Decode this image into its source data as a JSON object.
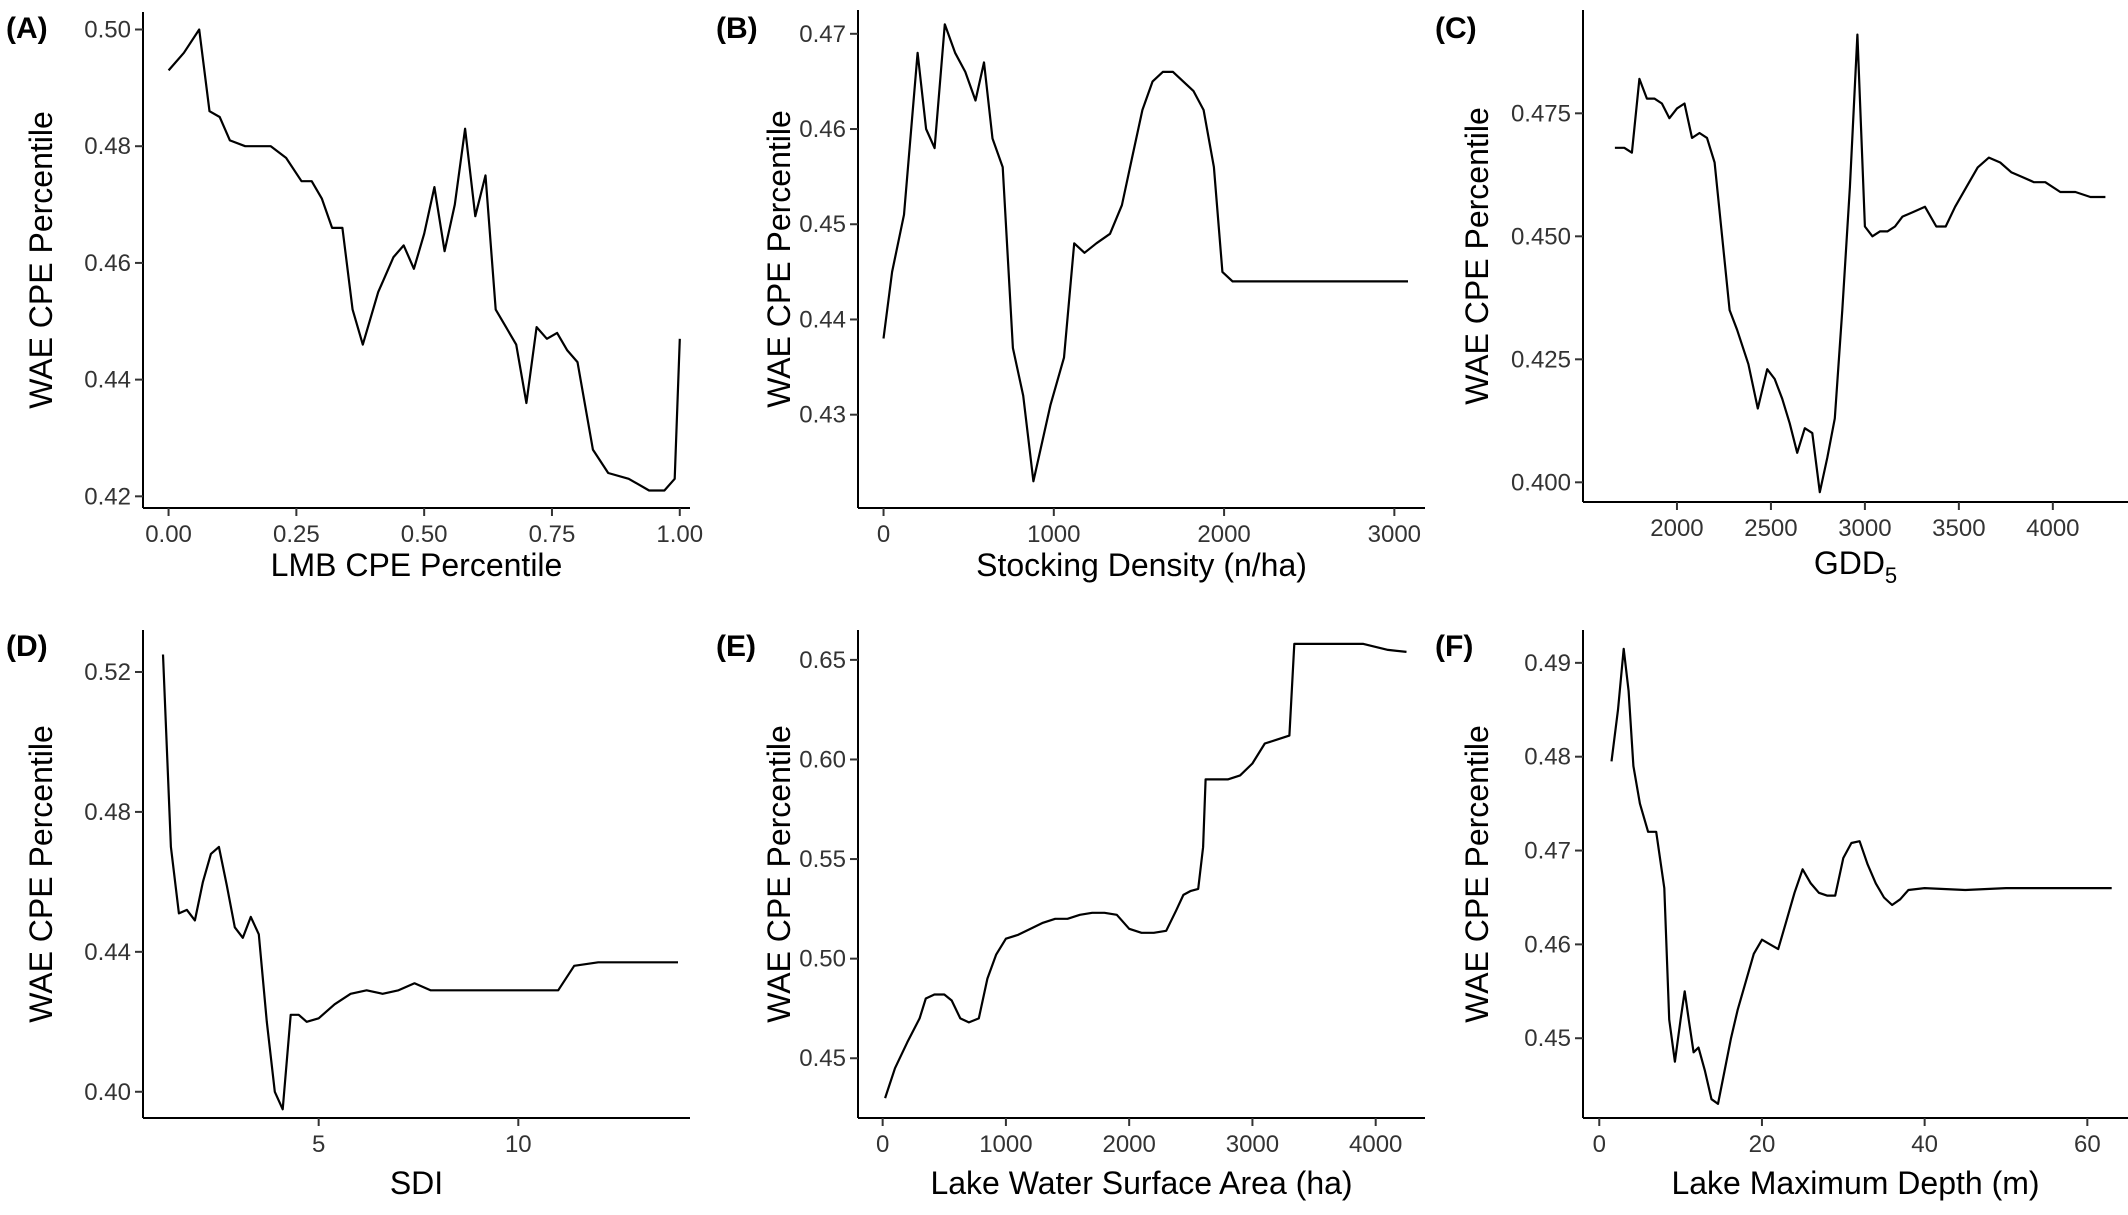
{
  "chart_data": [
    {
      "type": "line",
      "panel_label": "(A)",
      "xlabel": "LMB CPE Percentile",
      "ylabel": "WAE CPE Percentile",
      "xlim": [
        -0.05,
        1.02
      ],
      "ylim": [
        0.418,
        0.503
      ],
      "xticks": [
        0.0,
        0.25,
        0.5,
        0.75,
        1.0
      ],
      "xtick_labels": [
        "0.00",
        "0.25",
        "0.50",
        "0.75",
        "1.00"
      ],
      "yticks": [
        0.42,
        0.44,
        0.46,
        0.48,
        0.5
      ],
      "ytick_labels": [
        "0.42",
        "0.44",
        "0.46",
        "0.48",
        "0.50"
      ],
      "grid": false,
      "x": [
        0.0,
        0.03,
        0.06,
        0.08,
        0.1,
        0.12,
        0.15,
        0.2,
        0.23,
        0.26,
        0.28,
        0.3,
        0.32,
        0.34,
        0.36,
        0.38,
        0.41,
        0.44,
        0.46,
        0.48,
        0.5,
        0.52,
        0.54,
        0.56,
        0.58,
        0.6,
        0.62,
        0.64,
        0.66,
        0.68,
        0.7,
        0.72,
        0.74,
        0.76,
        0.78,
        0.8,
        0.83,
        0.86,
        0.9,
        0.94,
        0.97,
        0.99,
        1.0
      ],
      "y": [
        0.493,
        0.496,
        0.5,
        0.486,
        0.485,
        0.481,
        0.48,
        0.48,
        0.478,
        0.474,
        0.474,
        0.471,
        0.466,
        0.466,
        0.452,
        0.446,
        0.455,
        0.461,
        0.463,
        0.459,
        0.465,
        0.473,
        0.462,
        0.47,
        0.483,
        0.468,
        0.475,
        0.452,
        0.449,
        0.446,
        0.436,
        0.449,
        0.447,
        0.448,
        0.445,
        0.443,
        0.428,
        0.424,
        0.423,
        0.421,
        0.421,
        0.423,
        0.447
      ]
    },
    {
      "type": "line",
      "panel_label": "(B)",
      "xlabel": "Stocking Density (n/ha)",
      "ylabel": "WAE CPE Percentile",
      "xlim": [
        -150,
        3180
      ],
      "ylim": [
        0.4202,
        0.4725
      ],
      "xticks": [
        0,
        1000,
        2000,
        3000
      ],
      "xtick_labels": [
        "0",
        "1000",
        "2000",
        "3000"
      ],
      "yticks": [
        0.43,
        0.44,
        0.45,
        0.46,
        0.47
      ],
      "ytick_labels": [
        "0.43",
        "0.44",
        "0.45",
        "0.46",
        "0.47"
      ],
      "grid": false,
      "x": [
        0,
        50,
        120,
        200,
        250,
        300,
        360,
        420,
        480,
        540,
        590,
        640,
        700,
        760,
        820,
        880,
        930,
        980,
        1060,
        1120,
        1180,
        1250,
        1330,
        1400,
        1460,
        1520,
        1580,
        1640,
        1700,
        1760,
        1820,
        1880,
        1940,
        1990,
        2050,
        2120,
        2200,
        2500,
        2800,
        3080
      ],
      "y": [
        0.438,
        0.445,
        0.451,
        0.468,
        0.46,
        0.458,
        0.471,
        0.468,
        0.466,
        0.463,
        0.467,
        0.459,
        0.456,
        0.437,
        0.432,
        0.423,
        0.427,
        0.431,
        0.436,
        0.448,
        0.447,
        0.448,
        0.449,
        0.452,
        0.457,
        0.462,
        0.465,
        0.466,
        0.466,
        0.465,
        0.464,
        0.462,
        0.456,
        0.445,
        0.444,
        0.444,
        0.444,
        0.444,
        0.444,
        0.444
      ]
    },
    {
      "type": "line",
      "panel_label": "(C)",
      "xlabel": "GDD",
      "xlabel_subscript": "5",
      "ylabel": "WAE CPE Percentile",
      "xlim": [
        1500,
        4400
      ],
      "ylim": [
        0.396,
        0.496
      ],
      "xticks": [
        2000,
        2500,
        3000,
        3500,
        4000
      ],
      "xtick_labels": [
        "2000",
        "2500",
        "3000",
        "3500",
        "4000"
      ],
      "yticks": [
        0.4,
        0.425,
        0.45,
        0.475
      ],
      "ytick_labels": [
        "0.400",
        "0.425",
        "0.450",
        "0.475"
      ],
      "grid": false,
      "x": [
        1670,
        1720,
        1760,
        1800,
        1840,
        1880,
        1920,
        1960,
        2000,
        2040,
        2080,
        2120,
        2160,
        2200,
        2240,
        2280,
        2320,
        2380,
        2430,
        2480,
        2520,
        2560,
        2600,
        2640,
        2680,
        2720,
        2760,
        2800,
        2840,
        2880,
        2920,
        2960,
        3000,
        3040,
        3080,
        3120,
        3160,
        3200,
        3260,
        3320,
        3380,
        3430,
        3480,
        3540,
        3600,
        3660,
        3720,
        3780,
        3840,
        3900,
        3960,
        4040,
        4120,
        4200,
        4280
      ],
      "y": [
        0.468,
        0.468,
        0.467,
        0.482,
        0.478,
        0.478,
        0.477,
        0.474,
        0.476,
        0.477,
        0.47,
        0.471,
        0.47,
        0.465,
        0.45,
        0.435,
        0.431,
        0.424,
        0.415,
        0.423,
        0.421,
        0.417,
        0.412,
        0.406,
        0.411,
        0.41,
        0.398,
        0.405,
        0.413,
        0.435,
        0.46,
        0.491,
        0.452,
        0.45,
        0.451,
        0.451,
        0.452,
        0.454,
        0.455,
        0.456,
        0.452,
        0.452,
        0.456,
        0.46,
        0.464,
        0.466,
        0.465,
        0.463,
        0.462,
        0.461,
        0.461,
        0.459,
        0.459,
        0.458,
        0.458
      ]
    },
    {
      "type": "line",
      "panel_label": "(D)",
      "xlabel": "SDI",
      "ylabel": "WAE CPE Percentile",
      "xlim": [
        0.6,
        14.3
      ],
      "ylim": [
        0.3925,
        0.532
      ],
      "xticks": [
        5,
        10
      ],
      "xtick_labels": [
        "5",
        "10"
      ],
      "yticks": [
        0.4,
        0.44,
        0.48,
        0.52
      ],
      "ytick_labels": [
        "0.40",
        "0.44",
        "0.48",
        "0.52"
      ],
      "grid": false,
      "x": [
        1.1,
        1.3,
        1.5,
        1.7,
        1.9,
        2.1,
        2.3,
        2.5,
        2.7,
        2.9,
        3.1,
        3.3,
        3.5,
        3.7,
        3.9,
        4.1,
        4.3,
        4.5,
        4.7,
        5.0,
        5.4,
        5.8,
        6.2,
        6.6,
        7.0,
        7.4,
        7.8,
        8.2,
        8.6,
        9.0,
        9.5,
        10.0,
        10.5,
        11.0,
        11.4,
        12.0,
        13.0,
        14.0
      ],
      "y": [
        0.525,
        0.47,
        0.451,
        0.452,
        0.449,
        0.46,
        0.468,
        0.47,
        0.459,
        0.447,
        0.444,
        0.45,
        0.445,
        0.42,
        0.4,
        0.395,
        0.422,
        0.422,
        0.42,
        0.421,
        0.425,
        0.428,
        0.429,
        0.428,
        0.429,
        0.431,
        0.429,
        0.429,
        0.429,
        0.429,
        0.429,
        0.429,
        0.429,
        0.429,
        0.436,
        0.437,
        0.437,
        0.437
      ]
    },
    {
      "type": "line",
      "panel_label": "(E)",
      "xlabel": "Lake Water Surface Area (ha)",
      "ylabel": "WAE CPE Percentile",
      "xlim": [
        -200,
        4400
      ],
      "ylim": [
        0.42,
        0.665
      ],
      "xticks": [
        0,
        1000,
        2000,
        3000,
        4000
      ],
      "xtick_labels": [
        "0",
        "1000",
        "2000",
        "3000",
        "4000"
      ],
      "yticks": [
        0.45,
        0.5,
        0.55,
        0.6,
        0.65
      ],
      "ytick_labels": [
        "0.45",
        "0.50",
        "0.55",
        "0.60",
        "0.65"
      ],
      "grid": false,
      "x": [
        20,
        100,
        200,
        300,
        350,
        420,
        500,
        560,
        630,
        700,
        780,
        850,
        920,
        1000,
        1100,
        1200,
        1300,
        1400,
        1500,
        1600,
        1700,
        1800,
        1900,
        2000,
        2100,
        2200,
        2300,
        2380,
        2440,
        2500,
        2560,
        2600,
        2620,
        2700,
        2800,
        2900,
        3000,
        3100,
        3200,
        3300,
        3340,
        3400,
        3500,
        3700,
        3900,
        4100,
        4250
      ],
      "y": [
        0.43,
        0.445,
        0.458,
        0.47,
        0.48,
        0.482,
        0.482,
        0.479,
        0.47,
        0.468,
        0.47,
        0.49,
        0.502,
        0.51,
        0.512,
        0.515,
        0.518,
        0.52,
        0.52,
        0.522,
        0.523,
        0.523,
        0.522,
        0.515,
        0.513,
        0.513,
        0.514,
        0.524,
        0.532,
        0.534,
        0.535,
        0.556,
        0.59,
        0.59,
        0.59,
        0.592,
        0.598,
        0.608,
        0.61,
        0.612,
        0.658,
        0.658,
        0.658,
        0.658,
        0.658,
        0.655,
        0.654
      ]
    },
    {
      "type": "line",
      "panel_label": "(F)",
      "xlabel": "Lake Maximum Depth (m)",
      "ylabel": "WAE CPE Percentile",
      "xlim": [
        -2,
        65
      ],
      "ylim": [
        0.4415,
        0.4935
      ],
      "xticks": [
        0,
        20,
        40,
        60
      ],
      "xtick_labels": [
        "0",
        "20",
        "40",
        "60"
      ],
      "yticks": [
        0.45,
        0.46,
        0.47,
        0.48,
        0.49
      ],
      "ytick_labels": [
        "0.45",
        "0.46",
        "0.47",
        "0.48",
        "0.49"
      ],
      "grid": false,
      "x": [
        1.5,
        2.3,
        3.0,
        3.6,
        4.2,
        5.0,
        6.0,
        7.0,
        8.0,
        8.6,
        9.3,
        10.0,
        10.5,
        11.0,
        11.6,
        12.2,
        13.0,
        13.8,
        14.6,
        15.4,
        16.2,
        17.0,
        18.0,
        19.0,
        20.0,
        21.0,
        22.0,
        23.0,
        24.0,
        25.0,
        26.0,
        27.0,
        28.0,
        29.0,
        30.0,
        31.0,
        32.0,
        33.0,
        34.0,
        35.0,
        36.0,
        37.0,
        38.0,
        40.0,
        45.0,
        50.0,
        55.0,
        60.0,
        63.0
      ],
      "y": [
        0.4795,
        0.485,
        0.4915,
        0.487,
        0.479,
        0.475,
        0.472,
        0.472,
        0.466,
        0.452,
        0.4475,
        0.452,
        0.455,
        0.452,
        0.4485,
        0.449,
        0.4465,
        0.4435,
        0.443,
        0.4465,
        0.45,
        0.453,
        0.456,
        0.459,
        0.4605,
        0.46,
        0.4595,
        0.4625,
        0.4655,
        0.468,
        0.4665,
        0.4655,
        0.4652,
        0.4652,
        0.4692,
        0.4708,
        0.471,
        0.4685,
        0.4665,
        0.465,
        0.4642,
        0.4648,
        0.4658,
        0.466,
        0.4658,
        0.466,
        0.466,
        0.466,
        0.466
      ]
    }
  ]
}
